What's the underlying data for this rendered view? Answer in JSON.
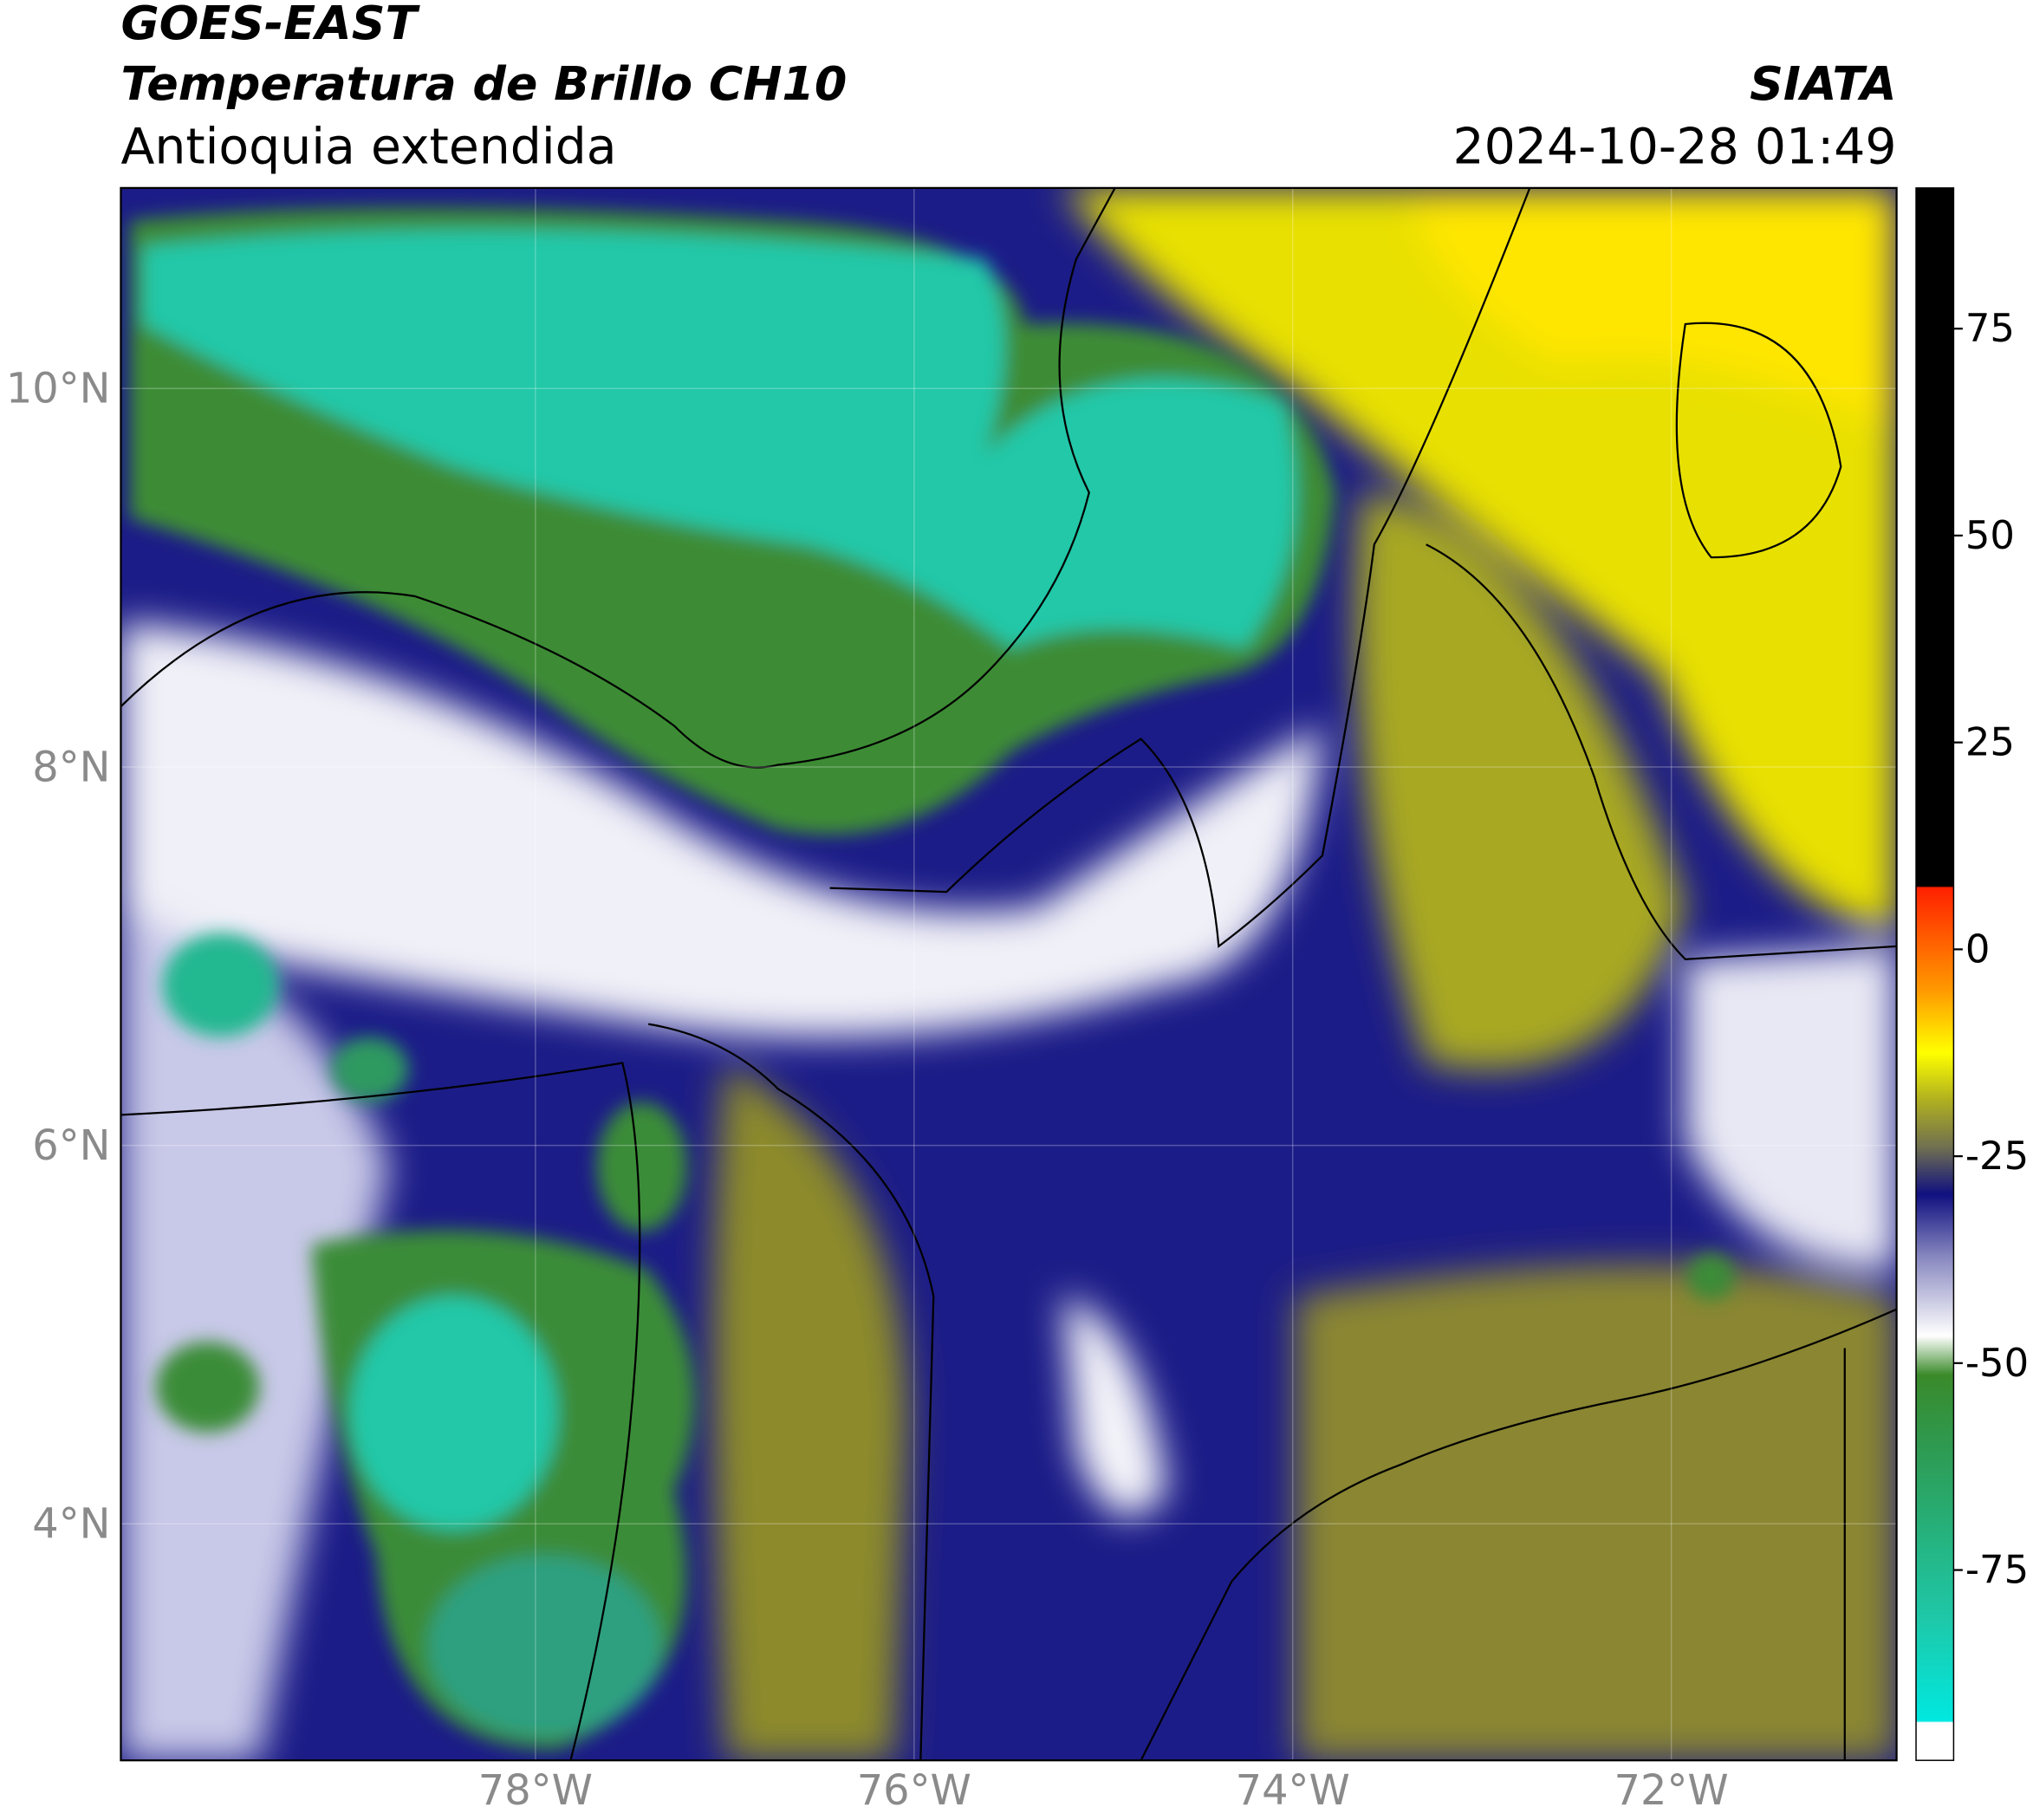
{
  "map": {
    "title": "GOES-EAST",
    "subtitle": "Temperatura de Brillo CH10",
    "region": "Antioquia extendida",
    "source": "SIATA",
    "timestamp": "2024-10-28 01:49",
    "lonlim": [
      -80.19,
      -70.81
    ],
    "latlim": [
      2.75,
      11.06
    ],
    "xticks": [
      {
        "value": -78,
        "label": "78°W"
      },
      {
        "value": -76,
        "label": "76°W"
      },
      {
        "value": -74,
        "label": "74°W"
      },
      {
        "value": -72,
        "label": "72°W"
      }
    ],
    "yticks": [
      {
        "value": 10,
        "label": "10°N"
      },
      {
        "value": 8,
        "label": "8°N"
      },
      {
        "value": 6,
        "label": "6°N"
      },
      {
        "value": 4,
        "label": "4°N"
      }
    ],
    "grid": true,
    "colorbar": {
      "clim": [
        -98,
        92
      ],
      "ticks": [
        75,
        50,
        25,
        0,
        -25,
        -50,
        -75
      ]
    }
  }
}
